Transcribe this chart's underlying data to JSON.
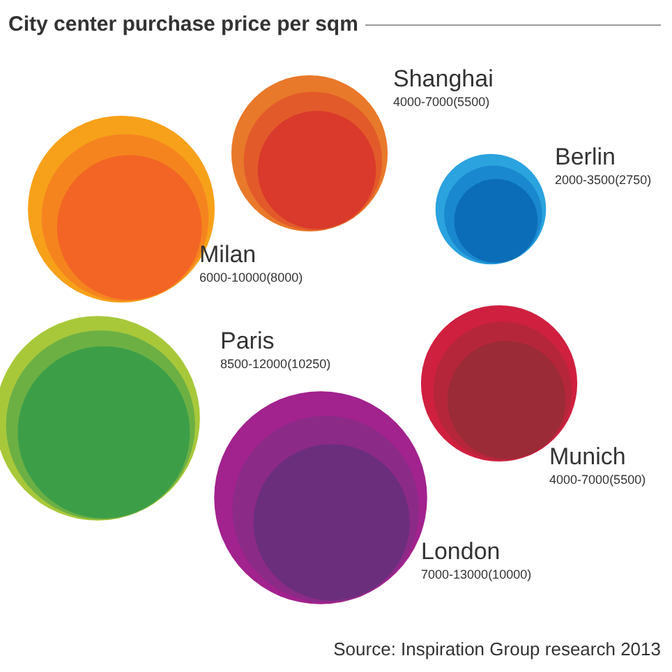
{
  "chart_data": {
    "type": "other",
    "title": "City center purchase price per sqm",
    "categories": [
      "Milan",
      "Shanghai",
      "Berlin",
      "Paris",
      "Munich",
      "London"
    ],
    "series": [
      {
        "values": [
          10000,
          7000,
          3500,
          12000,
          7000,
          13000
        ],
        "colors": [
          "#f7a11a",
          "#e8792a",
          "#2ba3de",
          "#a8c83a",
          "#cf2040",
          "#a2228e"
        ],
        "value_labels": [
          "10000",
          "7000",
          "3500",
          "12000",
          "7000",
          "13000"
        ]
      },
      {
        "values": [
          8000,
          5500,
          2750,
          10250,
          5500,
          10000
        ],
        "colors": [
          "#f5841f",
          "#e35a2a",
          "#1a88cf",
          "#6cb044",
          "#b6263b",
          "#8c2a88"
        ],
        "value_labels": [
          "(8000)",
          "(5500)",
          "(2750)",
          "(10250)",
          "(5500)",
          "(10000)"
        ]
      },
      {
        "values": [
          6000,
          4000,
          2000,
          8500,
          4000,
          7000
        ],
        "colors": [
          "#f26524",
          "#d93a2b",
          "#0b6db7",
          "#3c9f48",
          "#9b2b36",
          "#6b2e7d"
        ],
        "value_labels": [
          "6000-",
          "4000-",
          "2000-",
          "8500-",
          "4000-",
          "7000-"
        ]
      }
    ],
    "annotations": [
      "Source: Inspiration Group research 2013"
    ]
  }
}
